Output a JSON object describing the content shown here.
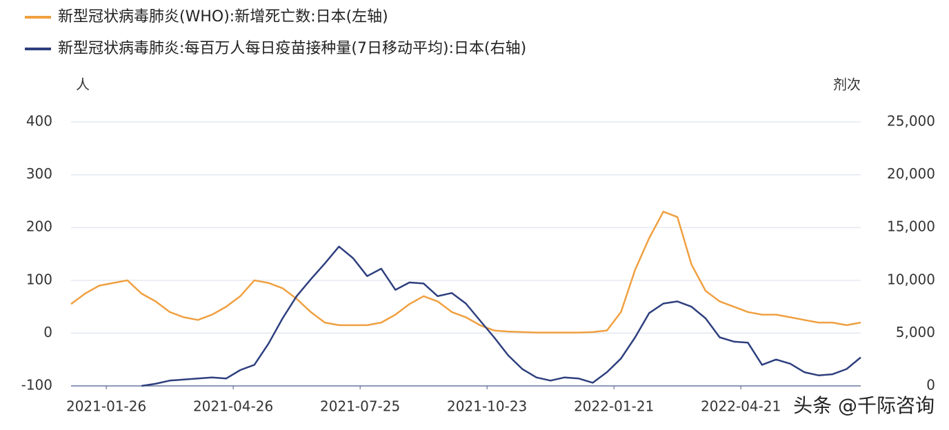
{
  "chart_data": {
    "type": "line",
    "legend_position": "top-left",
    "y_label": "人",
    "y2_label": "剂次",
    "watermark": "头条 @千际咨询",
    "grid": true,
    "x": [
      "2021-01-01",
      "2021-01-11",
      "2021-01-21",
      "2021-01-31",
      "2021-02-10",
      "2021-02-20",
      "2021-03-02",
      "2021-03-12",
      "2021-03-22",
      "2021-04-01",
      "2021-04-11",
      "2021-04-21",
      "2021-05-01",
      "2021-05-11",
      "2021-05-21",
      "2021-05-31",
      "2021-06-10",
      "2021-06-20",
      "2021-06-30",
      "2021-07-10",
      "2021-07-20",
      "2021-07-30",
      "2021-08-09",
      "2021-08-19",
      "2021-08-29",
      "2021-09-08",
      "2021-09-18",
      "2021-09-28",
      "2021-10-08",
      "2021-10-18",
      "2021-10-28",
      "2021-11-07",
      "2021-11-17",
      "2021-11-27",
      "2021-12-07",
      "2021-12-17",
      "2021-12-27",
      "2022-01-06",
      "2022-01-16",
      "2022-01-26",
      "2022-02-05",
      "2022-02-15",
      "2022-02-25",
      "2022-03-07",
      "2022-03-17",
      "2022-03-27",
      "2022-04-06",
      "2022-04-16",
      "2022-04-26",
      "2022-05-06",
      "2022-05-16",
      "2022-05-26",
      "2022-06-05",
      "2022-06-15",
      "2022-06-25",
      "2022-07-05",
      "2022-07-15"
    ],
    "xlim": [
      "2021-01-01",
      "2022-07-15"
    ],
    "xticks": [
      "2021-01-26",
      "2021-04-26",
      "2021-07-25",
      "2021-10-23",
      "2022-01-21",
      "2022-04-21"
    ],
    "ylim": [
      -100,
      400
    ],
    "yticks": [
      -100,
      0,
      100,
      200,
      300,
      400
    ],
    "y2lim": [
      0,
      25000
    ],
    "y2ticks": [
      0,
      {
        "value": 5000,
        "label": "5,000"
      },
      {
        "value": 10000,
        "label": "10,000"
      },
      {
        "value": 15000,
        "label": "15,000"
      },
      {
        "value": 20000,
        "label": "20,000"
      },
      {
        "value": 25000,
        "label": "25,000"
      }
    ],
    "series": [
      {
        "name": "新型冠状病毒肺炎(WHO):新增死亡数:日本(左轴)",
        "color": "#f0a040",
        "values": [
          55,
          75,
          90,
          95,
          100,
          75,
          60,
          40,
          30,
          25,
          35,
          50,
          70,
          100,
          95,
          85,
          65,
          40,
          20,
          15,
          15,
          15,
          20,
          35,
          55,
          70,
          60,
          40,
          30,
          15,
          5,
          3,
          2,
          1,
          1,
          1,
          1,
          2,
          5,
          40,
          120,
          180,
          230,
          220,
          130,
          80,
          60,
          50,
          40,
          35,
          35,
          30,
          25,
          20,
          20,
          15,
          20
        ]
      },
      {
        "name": "新型冠状病毒肺炎:每百万人每日疫苗接种量(7日移动平均):日本(右轴)",
        "color": "#2e3f7e",
        "axis": "y2",
        "values": [
          null,
          null,
          null,
          null,
          null,
          0,
          200,
          500,
          600,
          700,
          800,
          700,
          1500,
          2000,
          4000,
          6400,
          8500,
          10100,
          11600,
          13200,
          12100,
          10400,
          11100,
          9100,
          9800,
          9700,
          8500,
          8800,
          7800,
          6200,
          4600,
          2900,
          1600,
          800,
          500,
          800,
          700,
          300,
          1300,
          2600,
          4600,
          6900,
          7800,
          8000,
          7500,
          6400,
          4600,
          4200,
          4100,
          2000,
          2500,
          2100,
          1300,
          1000,
          1100,
          1600,
          2700
        ]
      }
    ]
  }
}
